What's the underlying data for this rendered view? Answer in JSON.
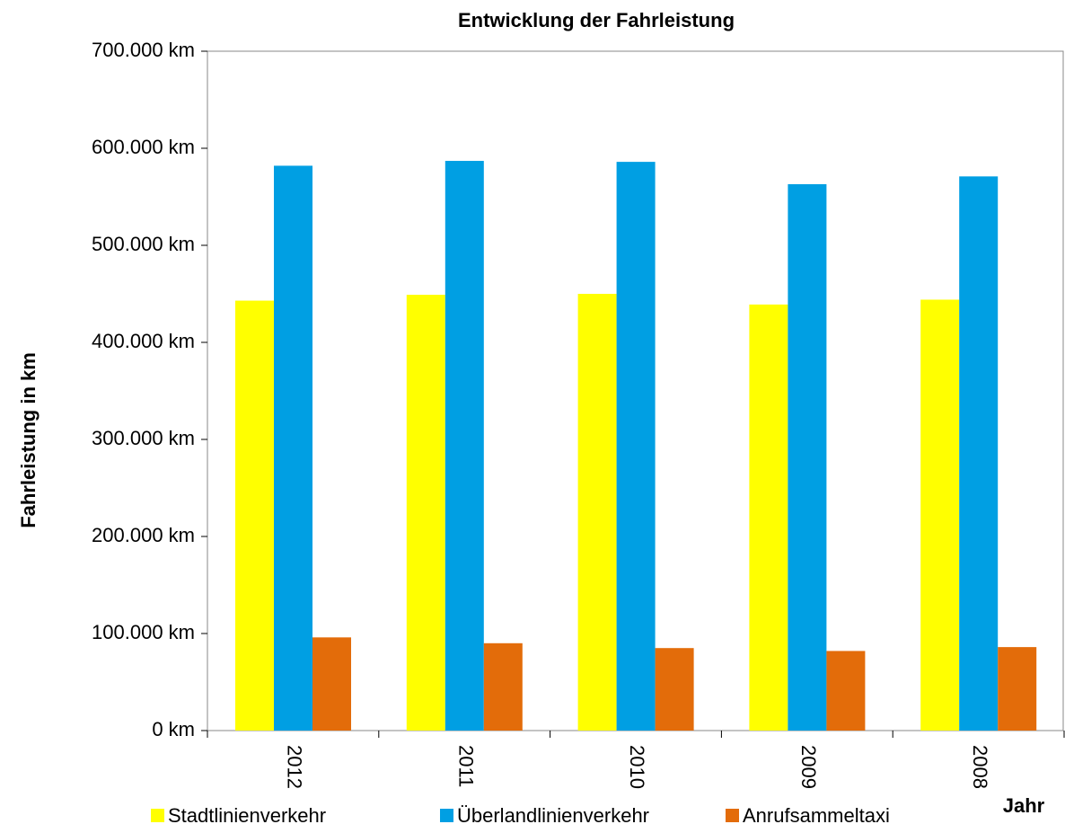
{
  "chart_data": {
    "type": "bar",
    "title": "Entwicklung der Fahrleistung",
    "y_label": "Fahrleistung in km",
    "x_label": "Jahr",
    "categories": [
      "2012",
      "2011",
      "2010",
      "2009",
      "2008"
    ],
    "series": [
      {
        "name": "Stadtlinienverkehr",
        "color": "#ffff00",
        "values": [
          443000,
          449000,
          450000,
          439000,
          444000
        ]
      },
      {
        "name": "Überlandlinienverkehr",
        "color": "#009fe3",
        "values": [
          582000,
          587000,
          586000,
          563000,
          571000
        ]
      },
      {
        "name": "Anrufsammeltaxi",
        "color": "#e36c0a",
        "values": [
          96000,
          90000,
          85000,
          82000,
          86000
        ]
      }
    ],
    "ylim": [
      0,
      700000
    ],
    "yticks": [
      {
        "value": 0,
        "label": "0 km"
      },
      {
        "value": 100000,
        "label": "100.000 km"
      },
      {
        "value": 200000,
        "label": "200.000 km"
      },
      {
        "value": 300000,
        "label": "300.000 km"
      },
      {
        "value": 400000,
        "label": "400.000 km"
      },
      {
        "value": 500000,
        "label": "500.000 km"
      },
      {
        "value": 600000,
        "label": "600.000 km"
      },
      {
        "value": 700000,
        "label": "700.000 km"
      }
    ],
    "grid": false,
    "legend": "bottom"
  }
}
